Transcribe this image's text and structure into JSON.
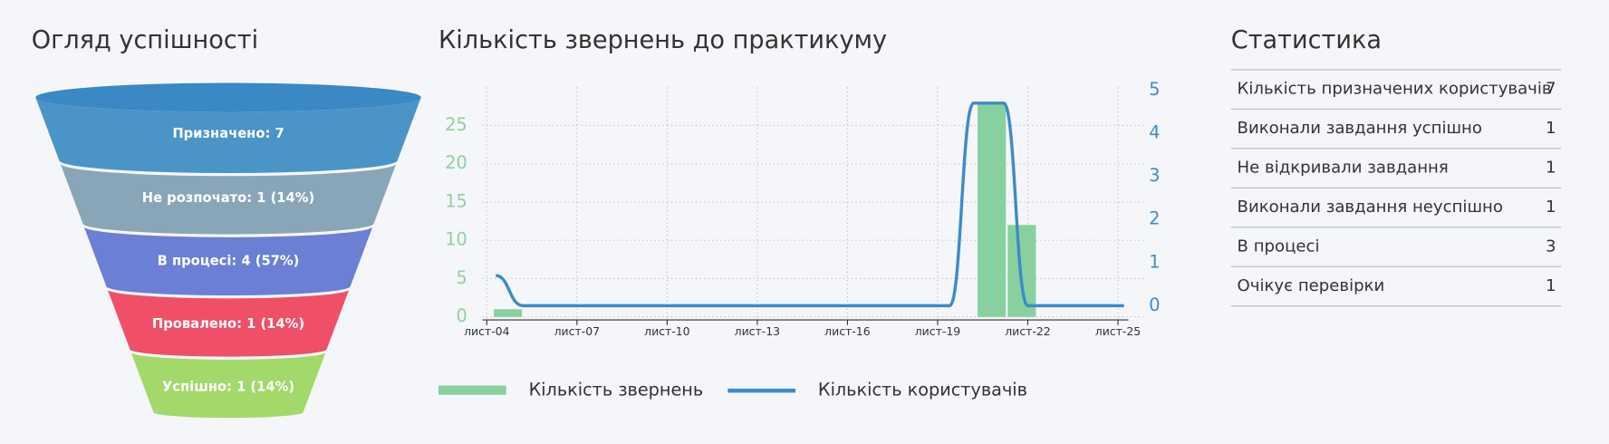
{
  "chart_data": [
    {
      "type": "funnel",
      "title": "Огляд успішності",
      "values": [
        7,
        1,
        4,
        1,
        1
      ],
      "value_labels": [
        "Призначено: 7",
        "Не розпочато: 1 (14%)",
        "В процесі: 4 (57%)",
        "Провалено: 1 (14%)",
        "Успішно: 1 (14%)"
      ],
      "colors": [
        "#4a94c8",
        "#89a6b9",
        "#6b7fd4",
        "#ef5068",
        "#a3d86a"
      ]
    },
    {
      "type": "combo",
      "title": "Кількість звернень до практикуму",
      "xlim": [
        3.86,
        25.35
      ],
      "xticks": [
        {
          "value": 4,
          "label": "лист-04"
        },
        {
          "value": 7,
          "label": "лист-07"
        },
        {
          "value": 10,
          "label": "лист-10"
        },
        {
          "value": 13,
          "label": "лист-13"
        },
        {
          "value": 16,
          "label": "лист-16"
        },
        {
          "value": 19,
          "label": "лист-19"
        },
        {
          "value": 22,
          "label": "лист-22"
        },
        {
          "value": 25,
          "label": "лист-25"
        }
      ],
      "ylim": [
        -0.4,
        30
      ],
      "yticks": [
        0,
        5,
        10,
        15,
        20,
        25
      ],
      "y2lim": [
        -0.33,
        5.07
      ],
      "y2ticks": [
        0,
        1,
        2,
        3,
        4,
        5
      ],
      "grid": true,
      "series": [
        {
          "name": "Кількість звернень",
          "type": "bar",
          "color": "#88d19f",
          "x": [
            4.7,
            20.8,
            21.8
          ],
          "values": [
            1,
            28,
            12
          ]
        },
        {
          "name": "Кількість користувачів",
          "type": "line",
          "axis": "y2",
          "color": "#3d8bc9",
          "x": [
            4.3,
            5.2,
            19.4,
            20.2,
            21.2,
            22,
            25.2
          ],
          "values": [
            0.7,
            0,
            0,
            4.7,
            4.7,
            0,
            0
          ]
        }
      ]
    }
  ],
  "table": {
    "title": "Статистика",
    "rows": [
      [
        "Кількість призначених користувачів",
        7
      ],
      [
        "Виконали завдання успішно",
        1
      ],
      [
        "Не відкривали завдання",
        1
      ],
      [
        "Виконали завдання неуспішно",
        1
      ],
      [
        "В процесі",
        3
      ],
      [
        "Очікує перевірки",
        1
      ]
    ]
  }
}
